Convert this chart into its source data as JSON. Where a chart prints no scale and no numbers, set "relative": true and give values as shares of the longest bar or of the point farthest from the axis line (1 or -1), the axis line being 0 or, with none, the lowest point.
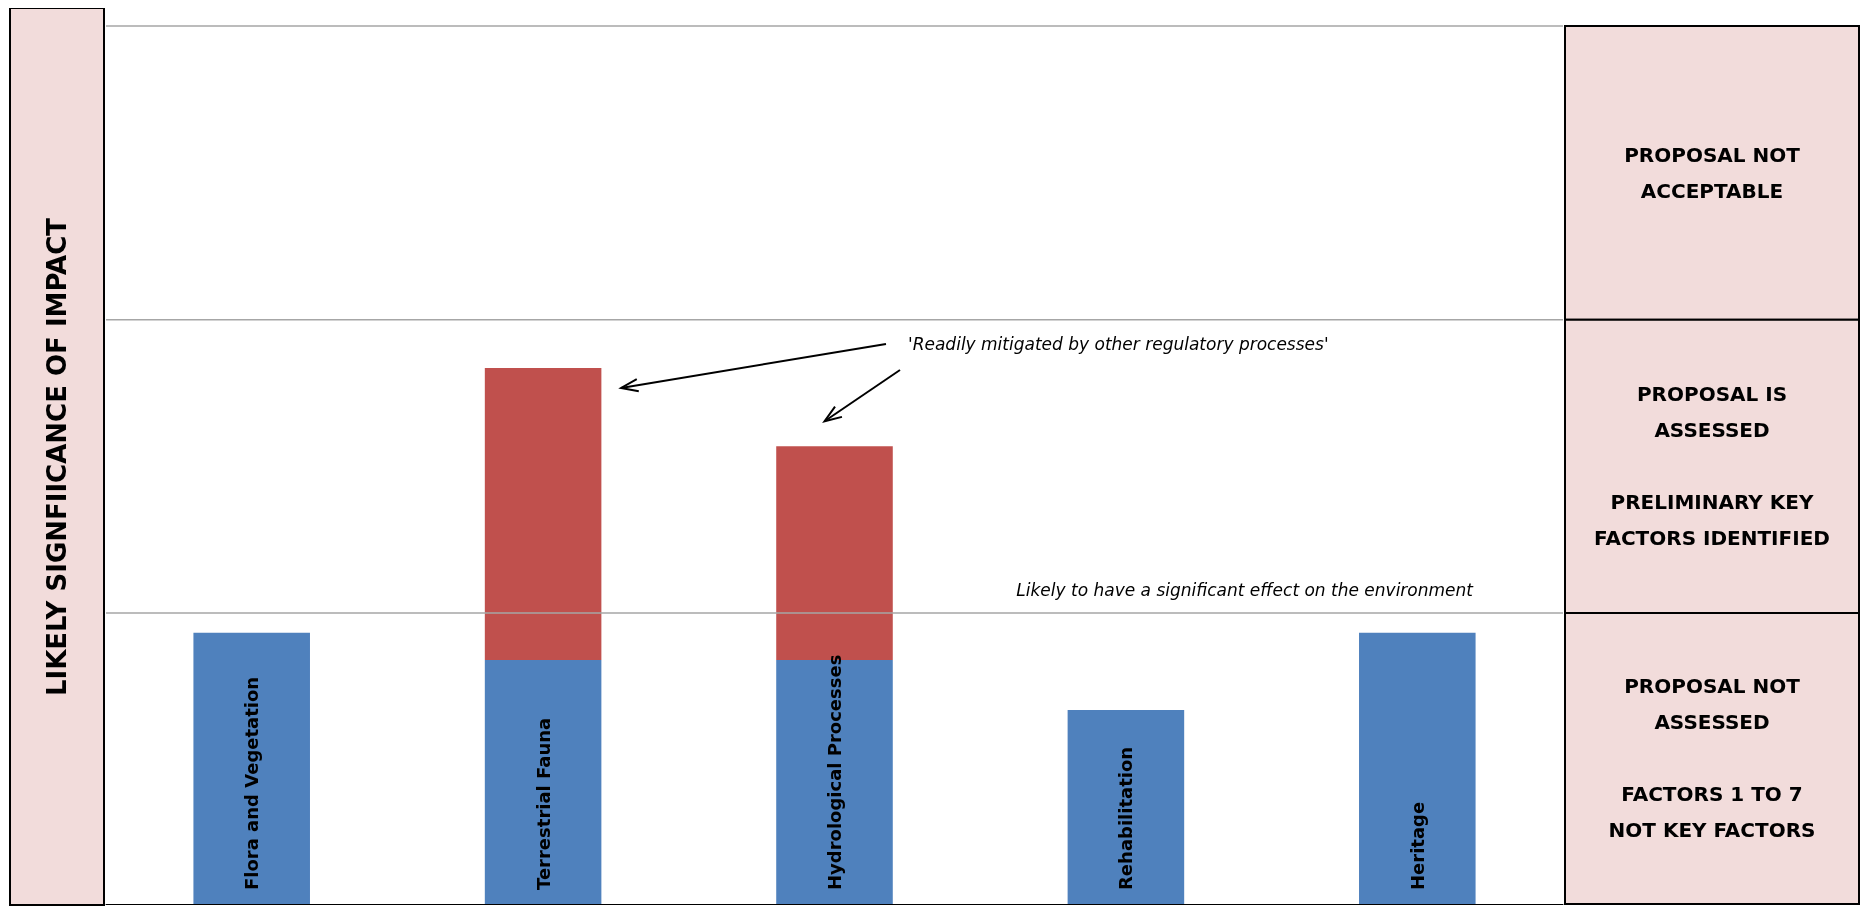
{
  "chart_data": {
    "type": "bar",
    "stacked": true,
    "relative": true,
    "ylabel": "LIKELY SIGNFIICANCE OF IMPACT",
    "categories": [
      "Flora and Vegetation",
      "Terrestrial Fauna",
      "Hydrological Processes",
      "Rehabilitation",
      "Heritage"
    ],
    "series": [
      {
        "color": "#4f81bd",
        "values": [
          0.506,
          0.455,
          0.455,
          0.362,
          0.506
        ]
      },
      {
        "color": "#c0504d",
        "values": [
          null,
          0.545,
          0.399,
          null,
          null
        ]
      }
    ],
    "ref_lines": [
      {
        "axis": "y",
        "value": 0.543,
        "label": "Likely to have a significant effect on the environment",
        "color": "#a6a6a6"
      },
      {
        "axis": "y",
        "value": 1.09,
        "label": null,
        "color": "#a6a6a6"
      },
      {
        "axis": "y",
        "value": 1.638,
        "label": null,
        "color": "#a6a6a6"
      }
    ],
    "annotations": [
      "'Readily mitigated by other regulatory processes'",
      "PROPOSAL NOT\nACCEPTABLE",
      "PROPOSAL IS\nASSESSED\n\nPRELIMINARY KEY\nFACTORS IDENTIFIED",
      "PROPOSAL NOT\nASSESSED\n\nFACTORS 1 TO 7\nNOT KEY FACTORS"
    ]
  }
}
